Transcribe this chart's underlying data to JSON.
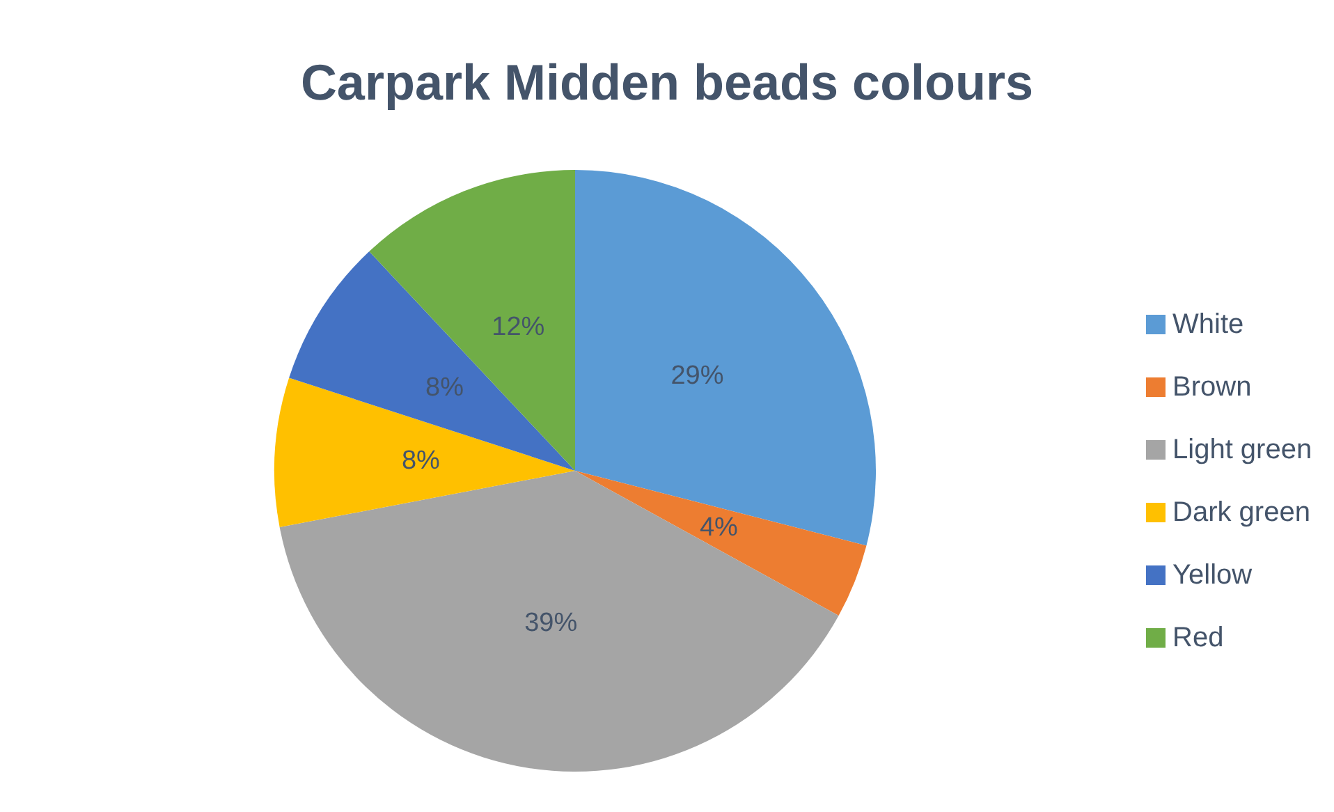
{
  "chart_data": {
    "type": "pie",
    "title": "Carpark Midden beads colours",
    "categories": [
      "White",
      "Brown",
      "Light green",
      "Dark green",
      "Yellow",
      "Red"
    ],
    "values": [
      29,
      4,
      39,
      8,
      8,
      12
    ],
    "value_labels": [
      "29%",
      "4%",
      "39%",
      "8%",
      "8%",
      "12%"
    ],
    "colors": [
      "#5b9bd5",
      "#ed7d31",
      "#a5a5a5",
      "#ffc000",
      "#4472c4",
      "#70ad47"
    ],
    "legend": "right"
  }
}
